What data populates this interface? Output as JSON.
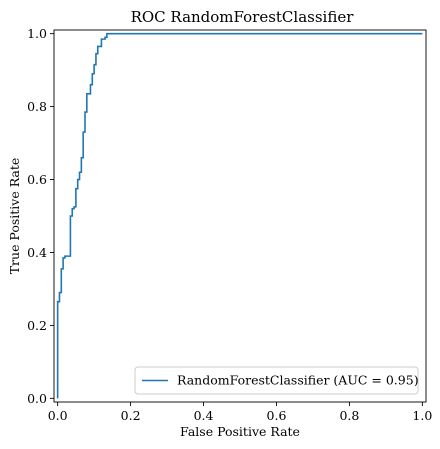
{
  "chart_data": {
    "type": "line",
    "title": "ROC RandomForestClassifier",
    "xlabel": "False Positive Rate",
    "ylabel": "True Positive Rate",
    "xlim": [
      -0.01,
      1.01
    ],
    "ylim": [
      -0.01,
      1.01
    ],
    "x_ticks": [
      0.0,
      0.2,
      0.4,
      0.6,
      0.8,
      1.0
    ],
    "y_ticks": [
      0.0,
      0.2,
      0.4,
      0.6,
      0.8,
      1.0
    ],
    "x_tick_labels": [
      "0.0",
      "0.2",
      "0.4",
      "0.6",
      "0.8",
      "1.0"
    ],
    "y_tick_labels": [
      "0.0",
      "0.2",
      "0.4",
      "0.6",
      "0.8",
      "1.0"
    ],
    "grid": false,
    "legend_position": "lower-right",
    "series": [
      {
        "name": "RandomForestClassifier (AUC = 0.95)",
        "color": "#1f77b4",
        "x": [
          0.0,
          0.0,
          0.005,
          0.005,
          0.01,
          0.01,
          0.015,
          0.015,
          0.02,
          0.02,
          0.035,
          0.035,
          0.04,
          0.04,
          0.045,
          0.045,
          0.05,
          0.05,
          0.055,
          0.055,
          0.06,
          0.06,
          0.065,
          0.065,
          0.07,
          0.07,
          0.075,
          0.075,
          0.08,
          0.08,
          0.09,
          0.09,
          0.095,
          0.095,
          0.1,
          0.1,
          0.105,
          0.105,
          0.11,
          0.11,
          0.115,
          0.115,
          0.12,
          0.12,
          0.13,
          0.13,
          0.135,
          0.135,
          0.14,
          0.14,
          1.0
        ],
        "y": [
          0.0,
          0.265,
          0.265,
          0.29,
          0.29,
          0.355,
          0.355,
          0.385,
          0.385,
          0.39,
          0.39,
          0.5,
          0.5,
          0.52,
          0.52,
          0.525,
          0.525,
          0.575,
          0.575,
          0.6,
          0.6,
          0.62,
          0.62,
          0.66,
          0.66,
          0.73,
          0.73,
          0.785,
          0.785,
          0.835,
          0.835,
          0.86,
          0.86,
          0.89,
          0.89,
          0.915,
          0.915,
          0.945,
          0.945,
          0.965,
          0.965,
          0.965,
          0.965,
          0.985,
          0.985,
          0.99,
          0.99,
          1.0,
          1.0,
          1.0,
          1.0
        ]
      }
    ]
  }
}
